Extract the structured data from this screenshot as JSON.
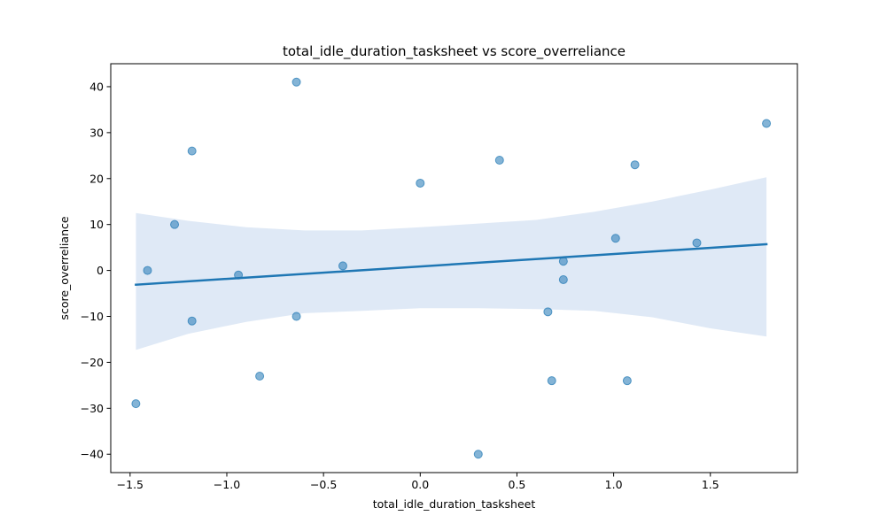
{
  "chart_data": {
    "type": "scatter",
    "title": "total_idle_duration_tasksheet vs score_overreliance",
    "xlabel": "total_idle_duration_tasksheet",
    "ylabel": "score_overreliance",
    "xlim": [
      -1.6,
      1.95
    ],
    "ylim": [
      -44,
      45
    ],
    "xticks": [
      -1.5,
      -1.0,
      -0.5,
      0.0,
      0.5,
      1.0,
      1.5
    ],
    "xtick_labels": [
      "−1.5",
      "−1.0",
      "−0.5",
      "0.0",
      "0.5",
      "1.0",
      "1.5"
    ],
    "yticks": [
      -40,
      -30,
      -20,
      -10,
      0,
      10,
      20,
      30,
      40
    ],
    "ytick_labels": [
      "−40",
      "−30",
      "−20",
      "−10",
      "0",
      "10",
      "20",
      "30",
      "40"
    ],
    "grid": false,
    "points": [
      {
        "x": -1.47,
        "y": -29
      },
      {
        "x": -1.41,
        "y": 0
      },
      {
        "x": -1.27,
        "y": 10
      },
      {
        "x": -1.18,
        "y": 26
      },
      {
        "x": -1.18,
        "y": -11
      },
      {
        "x": -0.94,
        "y": -1
      },
      {
        "x": -0.83,
        "y": -23
      },
      {
        "x": -0.64,
        "y": 41
      },
      {
        "x": -0.64,
        "y": -10
      },
      {
        "x": -0.4,
        "y": 1
      },
      {
        "x": 0.0,
        "y": 19
      },
      {
        "x": 0.3,
        "y": -40
      },
      {
        "x": 0.41,
        "y": 24
      },
      {
        "x": 0.66,
        "y": -9
      },
      {
        "x": 0.68,
        "y": -24
      },
      {
        "x": 0.74,
        "y": 2
      },
      {
        "x": 0.74,
        "y": -2
      },
      {
        "x": 1.01,
        "y": 7
      },
      {
        "x": 1.07,
        "y": -24
      },
      {
        "x": 1.11,
        "y": 23
      },
      {
        "x": 1.43,
        "y": 6
      },
      {
        "x": 1.79,
        "y": 32
      }
    ],
    "regression": {
      "x_start": -1.47,
      "y_start": -3.1,
      "x_end": 1.79,
      "y_end": 5.7
    },
    "confidence_band": {
      "x": [
        -1.47,
        -1.2,
        -0.9,
        -0.6,
        -0.3,
        0.0,
        0.3,
        0.6,
        0.9,
        1.2,
        1.5,
        1.79
      ],
      "upper": [
        12.5,
        10.8,
        9.4,
        8.7,
        8.7,
        9.4,
        10.2,
        11.0,
        12.8,
        15.0,
        17.6,
        20.3
      ],
      "lower": [
        -17.3,
        -13.8,
        -11.2,
        -9.3,
        -8.8,
        -8.2,
        -8.2,
        -8.4,
        -8.8,
        -10.2,
        -12.6,
        -14.4
      ]
    },
    "colors": {
      "points": "#1f77b4",
      "line": "#1f77b4",
      "band": "#aec7e8"
    }
  }
}
